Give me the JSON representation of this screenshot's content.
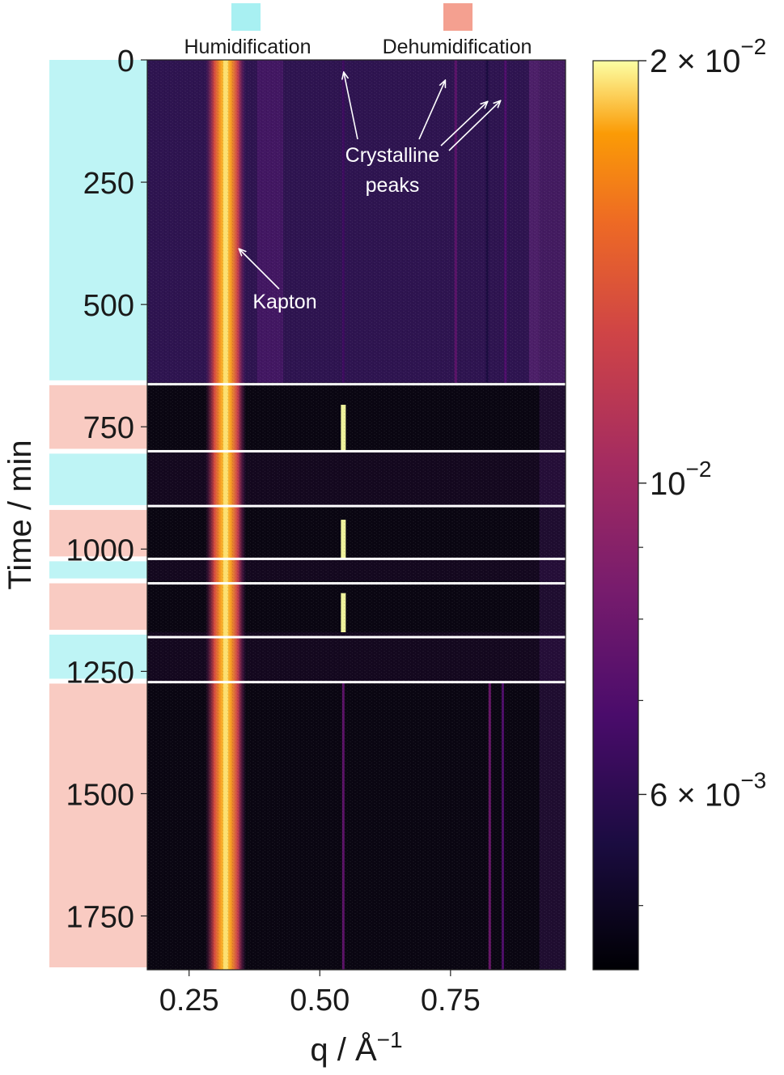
{
  "chart_data": {
    "type": "heatmap",
    "xlabel": "q / Å",
    "xlabel_exponent": "−1",
    "ylabel": "Time / min",
    "xlim": [
      0.17,
      0.97
    ],
    "ylim": [
      0,
      1860
    ],
    "y_inverted": true,
    "x_ticks": [
      0.25,
      0.5,
      0.75
    ],
    "x_tick_labels": [
      "0.25",
      "0.50",
      "0.75"
    ],
    "y_ticks": [
      0,
      250,
      500,
      750,
      1000,
      1250,
      1500,
      1750
    ],
    "y_tick_labels": [
      "0",
      "250",
      "500",
      "750",
      "1000",
      "1250",
      "1500",
      "1750"
    ],
    "colorbar": {
      "scale": "log",
      "colormap": "inferno",
      "vmin": 0.0045,
      "vmax": 0.02,
      "major_ticks": [
        0.02,
        0.01,
        0.006
      ],
      "labels": [
        {
          "value": 0.02,
          "base": "2 × 10",
          "exp": "−2"
        },
        {
          "value": 0.01,
          "base": "10",
          "exp": "−2"
        },
        {
          "value": 0.006,
          "base": "6 × 10",
          "exp": "−3"
        }
      ],
      "minor_ticks": [
        0.009,
        0.008,
        0.007,
        0.005
      ]
    },
    "legend": [
      {
        "label": "Humidification",
        "color": "#a8f0f2"
      },
      {
        "label": "Dehumidification",
        "color": "#f4a090"
      }
    ],
    "phases": [
      {
        "type": "Humidification",
        "start": 0,
        "end": 660
      },
      {
        "type": "Dehumidification",
        "start": 660,
        "end": 800
      },
      {
        "type": "Humidification",
        "start": 800,
        "end": 915
      },
      {
        "type": "Dehumidification",
        "start": 915,
        "end": 1020
      },
      {
        "type": "Humidification",
        "start": 1020,
        "end": 1065
      },
      {
        "type": "Dehumidification",
        "start": 1065,
        "end": 1170
      },
      {
        "type": "Humidification",
        "start": 1170,
        "end": 1270
      },
      {
        "type": "Dehumidification",
        "start": 1270,
        "end": 1860
      }
    ],
    "segment_boundaries": [
      663,
      800,
      912,
      1020,
      1070,
      1180,
      1272
    ],
    "features": [
      {
        "name": "Kapton",
        "q": 0.32,
        "t_start": 0,
        "t_end": 1860,
        "intensity": 0.02
      },
      {
        "name": "Crystalline peak",
        "q": 0.545,
        "t_start": 0,
        "t_end": 660,
        "intensity": 0.0065
      },
      {
        "name": "Crystalline peak",
        "q": 0.76,
        "t_start": 0,
        "t_end": 660,
        "intensity": 0.0075
      },
      {
        "name": "Crystalline peak",
        "q": 0.82,
        "t_start": 0,
        "t_end": 660,
        "intensity": 0.0055
      },
      {
        "name": "Crystalline peak",
        "q": 0.855,
        "t_start": 0,
        "t_end": 660,
        "intensity": 0.007
      },
      {
        "name": "Crystalline peak (dehumidification)",
        "q": 0.545,
        "t_start": 705,
        "t_end": 800,
        "intensity": 0.02
      },
      {
        "name": "Crystalline peak (dehumidification)",
        "q": 0.545,
        "t_start": 940,
        "t_end": 1020,
        "intensity": 0.02
      },
      {
        "name": "Crystalline peak (dehumidification)",
        "q": 0.545,
        "t_start": 1090,
        "t_end": 1170,
        "intensity": 0.02
      },
      {
        "name": "Crystalline peak",
        "q": 0.545,
        "t_start": 1272,
        "t_end": 1860,
        "intensity": 0.0075
      },
      {
        "name": "Crystalline peak",
        "q": 0.825,
        "t_start": 1272,
        "t_end": 1860,
        "intensity": 0.008
      },
      {
        "name": "Crystalline peak",
        "q": 0.85,
        "t_start": 1272,
        "t_end": 1860,
        "intensity": 0.007
      }
    ],
    "annotations": [
      {
        "text": "Kapton"
      },
      {
        "text": "Crystalline"
      },
      {
        "text": "peaks"
      }
    ]
  }
}
